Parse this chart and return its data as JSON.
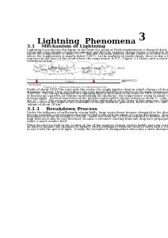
{
  "page_number": "3",
  "title": "Lightning  Phenomena",
  "section_title": "3.1    Mechanism of Lightning",
  "body1_lines": [
    "Lightning is an electric discharge in the form of a spark or flash originating in a charged cloud.  It has now been known for",
    "a long time that thunder clouds are charged, and that the negative charge centre is located in the lower part of the cloud",
    "where the temperature is about −15°C, and that the main positive charge centre is located several kilometres higher up,",
    "where the temperature is usually below −20°C.  In the majority of storm clouds, there is also a localised positively charged",
    "region near the base of the cloud where the temperature is 0°C.  Figure 3.1 shows such a cloud located above a overhead",
    "transmission line."
  ],
  "figure_caption": "Figure 3.1 - Induced charges on transmission line",
  "body2_lines": [
    "Fields of about 1000 V/m exist near the centre of a single bipolar cloud in which charges of about 20 C are separated by",
    "distances of about 3 km, and indicate the total potential difference between the main charge centres to be between 100 and",
    "1000 MV.  The energy dissipated in a lightning flash is therefore of the order of 1000 to 10,000 kJ, much of which is spent",
    "in heating up a narrow air volume surrounding the discharge, the temperature rising to about 15,000 °C in a few tens of",
    "microseconds.  Vertical separation of the positive and negative charge centres is about 2 - 5 km, and the charges involved",
    "are 10 - 30 C.  The average current dissipated by lightning is of the order of kilo-amperes.  During an average lightning",
    "storm, a total of the order of kilo-coulombs of charge would be generated, between the 0°C and the -40 °C levels, in a",
    "volume of about 50 km³."
  ],
  "section_title_2": "3.1.1    Breakdown Process",
  "body3_lines": [
    "Under the influence of sufficiently strong fields, large water drops become elongated in the direction of the field and",
    "become unstable, and streamers develop in their ends with the onset of corona discharges.  Drops of radius 2 mm develop",
    "streamers in fields exceeding 4.5 kV/cm – much less than the 30 kV/cm required to initiate the breakdown of dry air.  The",
    "high field need only be very localised, because a streamer starting from one drop once propagates itself from drop to drop",
    "under a much weaker field."
  ],
  "body4_lines": [
    "When the electric field in the vicinity of one of the negative charge centres builds up to the critical value (about 10 kV/cm),",
    "an ionised channel (an streamer) is formed, which propagates from the cloud to earth with a velocity that might be as high",
    "as one-tenth the speed of light.  Usually the streamer is extinguished when only a short distance from the cloud."
  ],
  "background_color": "#ffffff",
  "text_color": "#111111",
  "gray_color": "#999999",
  "arrow_color": "#bb3300",
  "transmission_label": "TRANSMISSION",
  "line_label": "LINE",
  "towers_label": "towers",
  "earth_label": "earth plane",
  "cloud_label": "cloud",
  "positive_label": "positive charge",
  "negative_label": "negative charge",
  "temp_pos": "-20°C",
  "temp_neg": "-15°C",
  "temp_zero": "0°C"
}
